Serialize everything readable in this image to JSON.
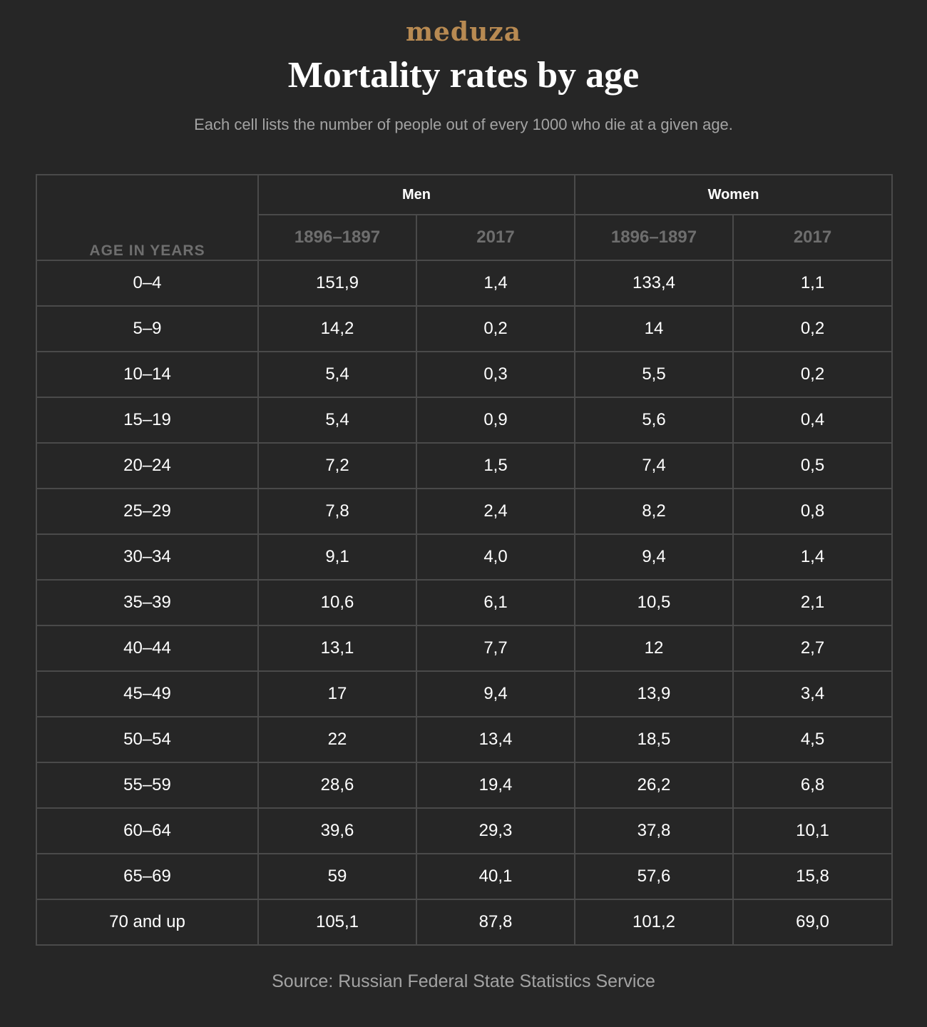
{
  "logo": "meduza",
  "title": "Mortality rates by age",
  "subtitle": "Each cell lists the number of people out of every 1000 who die at a given age.",
  "source": "Source: Russian Federal State Statistics Service",
  "colors": {
    "background": "#262626",
    "logo": "#b88a52",
    "grid": "#4a4a4a",
    "muted_header": "#6e6e6e",
    "caption": "#a3a3a3",
    "text": "#ffffff"
  },
  "chart_data": {
    "type": "table",
    "row_header_label": "AGE IN YEARS",
    "groups": [
      {
        "name": "Men",
        "columns": [
          "1896–1897",
          "2017"
        ]
      },
      {
        "name": "Women",
        "columns": [
          "1896–1897",
          "2017"
        ]
      }
    ],
    "rows": [
      {
        "age": "0–4",
        "values": [
          "151,9",
          "1,4",
          "133,4",
          "1,1"
        ]
      },
      {
        "age": "5–9",
        "values": [
          "14,2",
          "0,2",
          "14",
          "0,2"
        ]
      },
      {
        "age": "10–14",
        "values": [
          "5,4",
          "0,3",
          "5,5",
          "0,2"
        ]
      },
      {
        "age": "15–19",
        "values": [
          "5,4",
          "0,9",
          "5,6",
          "0,4"
        ]
      },
      {
        "age": "20–24",
        "values": [
          "7,2",
          "1,5",
          "7,4",
          "0,5"
        ]
      },
      {
        "age": "25–29",
        "values": [
          "7,8",
          "2,4",
          "8,2",
          "0,8"
        ]
      },
      {
        "age": "30–34",
        "values": [
          "9,1",
          "4,0",
          "9,4",
          "1,4"
        ]
      },
      {
        "age": "35–39",
        "values": [
          "10,6",
          "6,1",
          "10,5",
          "2,1"
        ]
      },
      {
        "age": "40–44",
        "values": [
          "13,1",
          "7,7",
          "12",
          "2,7"
        ]
      },
      {
        "age": "45–49",
        "values": [
          "17",
          "9,4",
          "13,9",
          "3,4"
        ]
      },
      {
        "age": "50–54",
        "values": [
          "22",
          "13,4",
          "18,5",
          "4,5"
        ]
      },
      {
        "age": "55–59",
        "values": [
          "28,6",
          "19,4",
          "26,2",
          "6,8"
        ]
      },
      {
        "age": "60–64",
        "values": [
          "39,6",
          "29,3",
          "37,8",
          "10,1"
        ]
      },
      {
        "age": "65–69",
        "values": [
          "59",
          "40,1",
          "57,6",
          "15,8"
        ]
      },
      {
        "age": "70 and up",
        "values": [
          "105,1",
          "87,8",
          "101,2",
          "69,0"
        ]
      }
    ]
  }
}
